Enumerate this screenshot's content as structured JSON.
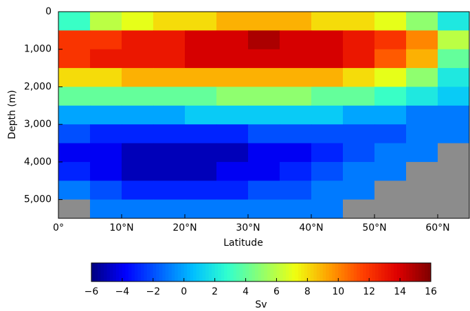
{
  "chart_data": {
    "type": "heatmap",
    "xlabel": "Latitude",
    "ylabel": "Depth (m)",
    "colorbar_label": "Sv",
    "x": [
      2.5,
      7.5,
      12.5,
      17.5,
      22.5,
      27.5,
      32.5,
      37.5,
      42.5,
      47.5,
      52.5,
      57.5,
      62.5
    ],
    "y": [
      250,
      750,
      1250,
      1750,
      2250,
      2750,
      3250,
      3750,
      4250,
      4750,
      5250
    ],
    "z": [
      [
        3,
        6,
        7,
        8,
        8,
        9,
        9,
        9,
        8,
        8,
        7,
        5,
        2
      ],
      [
        12,
        12,
        13,
        13,
        14,
        14,
        15,
        14,
        14,
        13,
        12,
        10,
        6
      ],
      [
        12,
        13,
        13,
        13,
        14,
        14,
        14,
        14,
        14,
        13,
        11,
        9,
        4
      ],
      [
        8,
        8,
        9,
        9,
        9,
        9,
        9,
        9,
        9,
        8,
        7,
        5,
        2
      ],
      [
        4,
        4,
        4,
        4,
        4,
        5,
        5,
        5,
        4,
        4,
        3,
        2,
        1
      ],
      [
        0,
        0,
        0,
        0,
        1,
        1,
        1,
        1,
        1,
        0,
        0,
        -1,
        -1
      ],
      [
        -2,
        -3,
        -3,
        -3,
        -3,
        -3,
        -2,
        -2,
        -2,
        -2,
        -2,
        -1,
        -1
      ],
      [
        -4,
        -4,
        -5,
        -5,
        -5,
        -5,
        -4,
        -4,
        -3,
        -2,
        -1,
        -1,
        null
      ],
      [
        -3,
        -4,
        -5,
        -5,
        -5,
        -4,
        -4,
        -3,
        -2,
        -1,
        -1,
        null,
        null
      ],
      [
        -1,
        -2,
        -3,
        -3,
        -3,
        -3,
        -2,
        -2,
        -1,
        -1,
        null,
        null,
        null
      ],
      [
        null,
        -1,
        -1,
        -1,
        -1,
        -1,
        -1,
        -1,
        -1,
        null,
        null,
        null,
        null
      ]
    ],
    "xlim": [
      0,
      65
    ],
    "xticks": [
      {
        "value": 0,
        "label": "0°"
      },
      {
        "value": 10,
        "label": "10°N"
      },
      {
        "value": 20,
        "label": "20°N"
      },
      {
        "value": 30,
        "label": "30°N"
      },
      {
        "value": 40,
        "label": "40°N"
      },
      {
        "value": 50,
        "label": "50°N"
      },
      {
        "value": 60,
        "label": "60°N"
      }
    ],
    "ylim": [
      0,
      5500
    ],
    "y_inverted": true,
    "yticks": [
      0,
      {
        "value": 1000,
        "label": "1,000"
      },
      {
        "value": 2000,
        "label": "2,000"
      },
      {
        "value": 3000,
        "label": "3,000"
      },
      {
        "value": 4000,
        "label": "4,000"
      },
      {
        "value": 5000,
        "label": "5,000"
      }
    ],
    "zlim": [
      -6,
      16
    ],
    "zticks": [
      {
        "value": -6,
        "label": "−6"
      },
      {
        "value": -4,
        "label": "−4"
      },
      {
        "value": -2,
        "label": "−2"
      },
      0,
      2,
      4,
      6,
      8,
      10,
      12,
      14,
      16
    ],
    "colormap": [
      "#00007f",
      "#0000ff",
      "#0060ff",
      "#00bfff",
      "#30ffcf",
      "#8fff6f",
      "#efff10",
      "#ffa000",
      "#ff4000",
      "#df0000",
      "#7f0000"
    ],
    "null_color": "#8c8c8c"
  }
}
